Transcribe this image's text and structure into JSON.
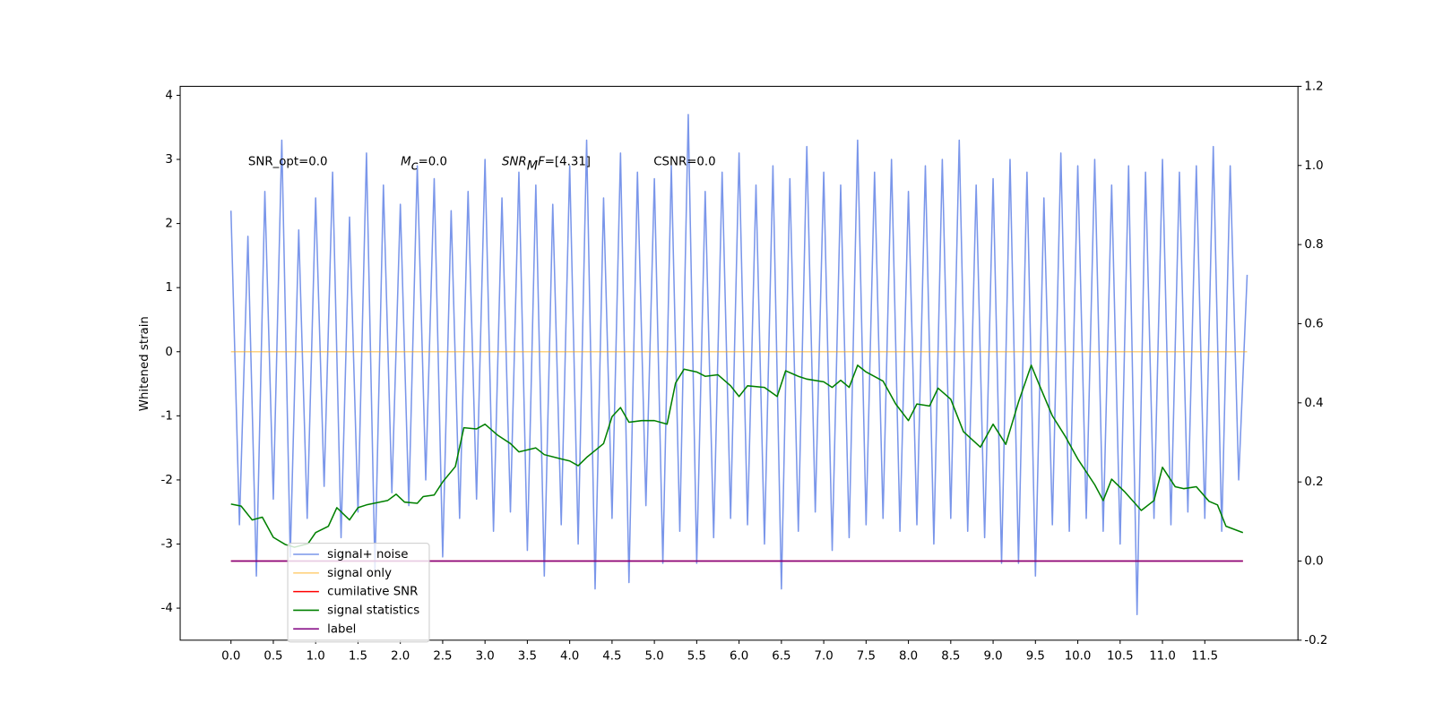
{
  "chart_data": {
    "type": "line",
    "ylabel": "Whitened strain",
    "xlim": [
      -0.6,
      12.6
    ],
    "ylim": [
      -4.5,
      4.14
    ],
    "y2lim": [
      -0.2,
      1.2
    ],
    "xticks": [
      {
        "value": 0,
        "label": "0.0"
      },
      0.5,
      {
        "value": 1,
        "label": "1.0"
      },
      1.5,
      {
        "value": 2,
        "label": "2.0"
      },
      2.5,
      {
        "value": 3,
        "label": "3.0"
      },
      3.5,
      {
        "value": 4,
        "label": "4.0"
      },
      4.5,
      {
        "value": 5,
        "label": "5.0"
      },
      5.5,
      {
        "value": 6,
        "label": "6.0"
      },
      6.5,
      {
        "value": 7,
        "label": "7.0"
      },
      7.5,
      {
        "value": 8,
        "label": "8.0"
      },
      8.5,
      {
        "value": 9,
        "label": "9.0"
      },
      9.5,
      {
        "value": 10,
        "label": "10.0"
      },
      10.5,
      {
        "value": 11,
        "label": "11.0"
      },
      11.5
    ],
    "yticks": [
      -4,
      -3,
      -2,
      -1,
      0,
      1,
      2,
      3,
      4
    ],
    "y2ticks": [
      -0.2,
      {
        "value": 0,
        "label": "0.0"
      },
      0.2,
      0.4,
      0.6,
      0.8,
      {
        "value": 1,
        "label": "1.0"
      },
      1.2
    ],
    "grid": false,
    "legend": "lower left",
    "annotations": [
      [
        {
          "t": "SNR_opt=0.0",
          "style": "normal"
        }
      ],
      [
        {
          "t": "M",
          "style": "italic"
        },
        {
          "t": "c",
          "style": "sub"
        },
        {
          "t": "=0.0",
          "style": "normal"
        }
      ],
      [
        {
          "t": "SNR",
          "style": "italic"
        },
        {
          "t": "M",
          "style": "sub"
        },
        {
          "t": "F",
          "style": "italic"
        },
        {
          "t": "=[4.31]",
          "style": "normal"
        }
      ],
      [
        {
          "t": "CSNR=0.0",
          "style": "normal"
        }
      ]
    ],
    "series": [
      {
        "name": "signal+ noise",
        "color": "#4169e1",
        "alpha": 0.7,
        "x": [
          0,
          0.1,
          0.2,
          0.3,
          0.4,
          0.5,
          0.6,
          0.7,
          0.8,
          0.9,
          1,
          1.1,
          1.2,
          1.3,
          1.4,
          1.5,
          1.6,
          1.7,
          1.8,
          1.9,
          2,
          2.1,
          2.2,
          2.3,
          2.4,
          2.5,
          2.6,
          2.7,
          2.8,
          2.9,
          3,
          3.1,
          3.2,
          3.3,
          3.4,
          3.5,
          3.6,
          3.7,
          3.8,
          3.9,
          4,
          4.1,
          4.2,
          4.3,
          4.4,
          4.5,
          4.6,
          4.7,
          4.8,
          4.9,
          5,
          5.1,
          5.2,
          5.3,
          5.4,
          5.5,
          5.6,
          5.7,
          5.8,
          5.9,
          6,
          6.1,
          6.2,
          6.3,
          6.4,
          6.5,
          6.6,
          6.7,
          6.8,
          6.9,
          7,
          7.1,
          7.2,
          7.3,
          7.4,
          7.5,
          7.6,
          7.7,
          7.8,
          7.9,
          8,
          8.1,
          8.2,
          8.3,
          8.4,
          8.5,
          8.6,
          8.7,
          8.8,
          8.9,
          9,
          9.1,
          9.2,
          9.3,
          9.4,
          9.5,
          9.6,
          9.7,
          9.8,
          9.9,
          10,
          10.1,
          10.2,
          10.3,
          10.4,
          10.5,
          10.6,
          10.7,
          10.8,
          10.9,
          11,
          11.1,
          11.2,
          11.3,
          11.4,
          11.5,
          11.6,
          11.7,
          11.8,
          11.9,
          12
        ],
        "values": [
          2.2,
          -2.7,
          1.8,
          -3.5,
          2.5,
          -2.3,
          3.3,
          -3.2,
          1.9,
          -2.6,
          2.4,
          -2.1,
          2.8,
          -2.9,
          2.1,
          -2.5,
          3.1,
          -3.4,
          2.6,
          -2.2,
          2.3,
          -2.4,
          2.9,
          -2.0,
          2.7,
          -3.2,
          2.2,
          -2.6,
          2.5,
          -2.3,
          3.0,
          -2.8,
          2.4,
          -2.5,
          2.8,
          -3.1,
          2.6,
          -3.5,
          2.3,
          -2.7,
          2.9,
          -3.0,
          3.3,
          -3.7,
          2.4,
          -2.6,
          3.1,
          -3.6,
          2.8,
          -2.4,
          2.7,
          -3.3,
          2.9,
          -2.8,
          3.7,
          -3.3,
          2.5,
          -2.9,
          2.8,
          -2.6,
          3.1,
          -2.7,
          2.6,
          -3.0,
          2.9,
          -3.7,
          2.7,
          -2.8,
          3.2,
          -2.5,
          2.8,
          -3.1,
          2.6,
          -2.9,
          3.3,
          -2.7,
          2.8,
          -2.6,
          3.0,
          -2.8,
          2.5,
          -2.7,
          2.9,
          -3.0,
          3.0,
          -2.6,
          3.3,
          -2.8,
          2.6,
          -2.9,
          2.7,
          -3.3,
          3.0,
          -3.3,
          2.8,
          -3.5,
          2.4,
          -2.7,
          3.1,
          -2.8,
          2.9,
          -2.6,
          3.0,
          -2.8,
          2.6,
          -3.0,
          2.9,
          -4.1,
          2.8,
          -2.6,
          3.0,
          -2.7,
          2.8,
          -2.5,
          2.9,
          -2.6,
          3.2,
          -2.8,
          2.9,
          -2.0,
          1.2
        ]
      },
      {
        "name": "signal only",
        "color": "#ffa500",
        "alpha": 0.5,
        "x": [
          0,
          12
        ],
        "values": [
          0,
          0
        ]
      },
      {
        "name": "cumilative SNR",
        "color": "#ff0000",
        "alpha": 1,
        "axis": "y2",
        "x": [
          0,
          11.95
        ],
        "values": [
          0,
          0
        ]
      },
      {
        "name": "signal statistics",
        "color": "#008000",
        "alpha": 1,
        "axis": "y2",
        "x": [
          0,
          0.12,
          0.25,
          0.37,
          0.5,
          0.64,
          0.75,
          0.91,
          1.0,
          1.15,
          1.25,
          1.4,
          1.5,
          1.6,
          1.85,
          1.95,
          2.05,
          2.2,
          2.27,
          2.4,
          2.5,
          2.65,
          2.75,
          2.9,
          3.0,
          3.15,
          3.3,
          3.4,
          3.5,
          3.6,
          3.7,
          3.9,
          4.0,
          4.1,
          4.2,
          4.4,
          4.5,
          4.6,
          4.7,
          4.85,
          5.0,
          5.15,
          5.25,
          5.35,
          5.5,
          5.6,
          5.75,
          5.9,
          6.0,
          6.1,
          6.3,
          6.45,
          6.55,
          6.7,
          6.8,
          7.0,
          7.1,
          7.2,
          7.3,
          7.4,
          7.5,
          7.7,
          7.85,
          8.0,
          8.1,
          8.25,
          8.35,
          8.5,
          8.65,
          8.85,
          9.0,
          9.15,
          9.3,
          9.45,
          9.55,
          9.7,
          9.85,
          10.0,
          10.2,
          10.3,
          10.4,
          10.55,
          10.75,
          10.9,
          11.0,
          11.15,
          11.25,
          11.4,
          11.55,
          11.65,
          11.75,
          11.95
        ],
        "values": [
          0.144,
          0.139,
          0.104,
          0.111,
          0.06,
          0.042,
          0.035,
          0.044,
          0.072,
          0.088,
          0.135,
          0.104,
          0.135,
          0.142,
          0.153,
          0.169,
          0.149,
          0.146,
          0.163,
          0.167,
          0.2,
          0.239,
          0.337,
          0.334,
          0.346,
          0.318,
          0.297,
          0.276,
          0.281,
          0.286,
          0.269,
          0.258,
          0.253,
          0.241,
          0.262,
          0.297,
          0.365,
          0.388,
          0.351,
          0.355,
          0.355,
          0.346,
          0.45,
          0.485,
          0.478,
          0.467,
          0.471,
          0.443,
          0.416,
          0.443,
          0.439,
          0.416,
          0.481,
          0.467,
          0.46,
          0.453,
          0.439,
          0.457,
          0.439,
          0.495,
          0.478,
          0.455,
          0.397,
          0.355,
          0.397,
          0.392,
          0.437,
          0.409,
          0.327,
          0.288,
          0.346,
          0.295,
          0.402,
          0.495,
          0.443,
          0.367,
          0.316,
          0.258,
          0.193,
          0.153,
          0.207,
          0.176,
          0.128,
          0.153,
          0.237,
          0.188,
          0.183,
          0.188,
          0.151,
          0.142,
          0.088,
          0.072
        ]
      },
      {
        "name": "label",
        "color": "#800080",
        "alpha": 1,
        "axis": "y2",
        "x": [
          0,
          11.95
        ],
        "values": [
          0,
          0
        ]
      }
    ]
  }
}
